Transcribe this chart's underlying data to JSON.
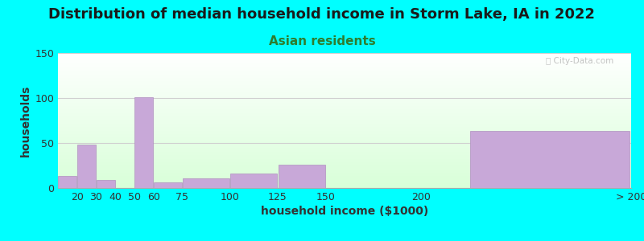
{
  "title": "Distribution of median household income in Storm Lake, IA in 2022",
  "subtitle": "Asian residents",
  "xlabel": "household income ($1000)",
  "ylabel": "households",
  "background_color": "#00FFFF",
  "bar_color": "#C8A8D8",
  "bar_edge_color": "#B090C0",
  "watermark": "Ⓢ City-Data.com",
  "ylim": [
    0,
    150
  ],
  "yticks": [
    0,
    50,
    100,
    150
  ],
  "categories": [
    "20",
    "30",
    "40",
    "50",
    "60",
    "75",
    "100",
    "125",
    "150",
    "200",
    "> 200"
  ],
  "values": [
    13,
    48,
    9,
    0,
    101,
    6,
    11,
    16,
    26,
    0,
    63
  ],
  "bin_lefts": [
    10,
    20,
    30,
    40,
    50,
    60,
    75,
    100,
    125,
    150,
    225
  ],
  "bin_rights": [
    20,
    30,
    40,
    50,
    60,
    75,
    100,
    125,
    150,
    200,
    310
  ],
  "tick_positions": [
    20,
    30,
    40,
    50,
    60,
    75,
    100,
    125,
    150,
    200,
    310
  ],
  "xlim": [
    10,
    310
  ],
  "title_fontsize": 13,
  "subtitle_fontsize": 11,
  "subtitle_color": "#2E7D2E",
  "axis_label_fontsize": 10,
  "tick_fontsize": 9,
  "grid_color": "#D0D0D0",
  "title_color": "#1a1a1a"
}
